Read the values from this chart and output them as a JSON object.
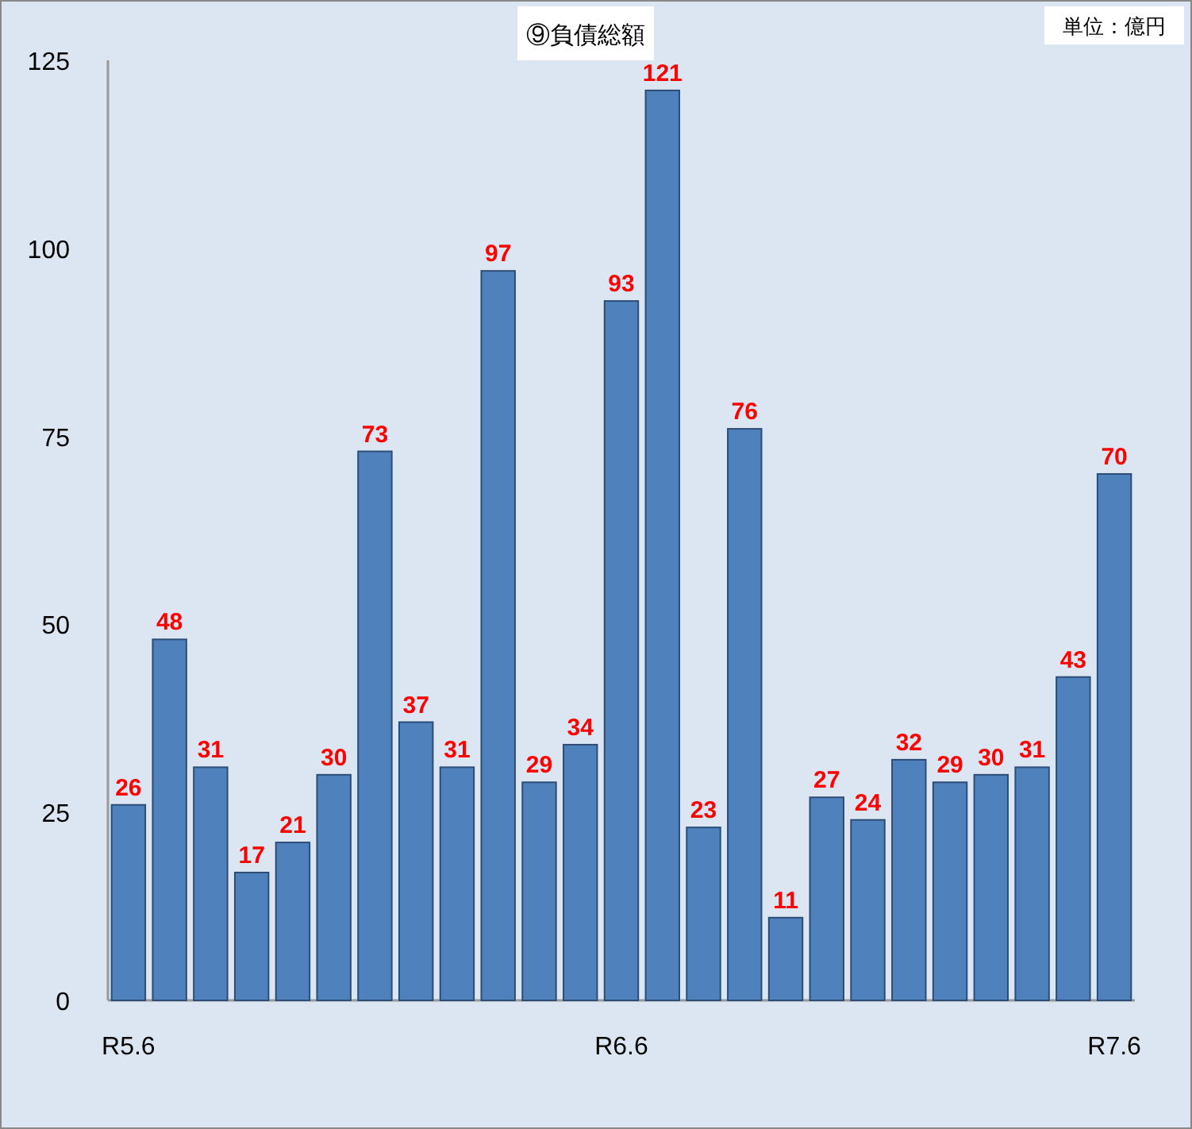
{
  "chart_data": {
    "type": "bar",
    "title": "⑨負債総額",
    "annotations": [
      "単位：億円"
    ],
    "categories": [
      "R5.6",
      null,
      null,
      null,
      null,
      null,
      null,
      null,
      null,
      null,
      null,
      null,
      "R6.6",
      null,
      null,
      null,
      null,
      null,
      null,
      null,
      null,
      null,
      null,
      null,
      "R7.6"
    ],
    "values": [
      26,
      48,
      31,
      17,
      21,
      30,
      73,
      37,
      31,
      97,
      29,
      34,
      93,
      121,
      23,
      76,
      11,
      27,
      24,
      32,
      29,
      30,
      31,
      43,
      70
    ],
    "color": "#4f81bd",
    "ylim": [
      0,
      125
    ],
    "yticks": [
      0,
      25,
      50,
      75,
      100,
      125
    ],
    "data_labels": true
  }
}
